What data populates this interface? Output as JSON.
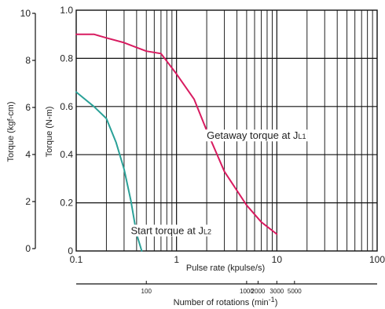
{
  "chart_data": {
    "type": "line",
    "x_scale": "log",
    "xlim": [
      0.1,
      100
    ],
    "ylim": [
      0,
      1.0
    ],
    "ylim_secondary": [
      0,
      10
    ],
    "grid": true,
    "xlabel": "Pulse rate (kpulse/s)",
    "ylabel": "Torque (N-m)",
    "ylabel_secondary": "Torque (kgf-cm)",
    "x_secondary_label": "Number of rotations (min",
    "x_secondary_label_sup": "-1",
    "x_secondary_label_end": ")",
    "x_ticks": [
      {
        "value": 0.1,
        "label": "0.1"
      },
      {
        "value": 1,
        "label": "1"
      },
      {
        "value": 10,
        "label": "10"
      },
      {
        "value": 100,
        "label": "100"
      }
    ],
    "y_ticks": [
      {
        "value": 0,
        "label": "0"
      },
      {
        "value": 0.2,
        "label": "0.2"
      },
      {
        "value": 0.4,
        "label": "0.4"
      },
      {
        "value": 0.6,
        "label": "0.6"
      },
      {
        "value": 0.8,
        "label": "0.8"
      },
      {
        "value": 1.0,
        "label": "1.0"
      }
    ],
    "y_secondary_ticks": [
      {
        "value": 0,
        "label": "0"
      },
      {
        "value": 2,
        "label": "2"
      },
      {
        "value": 4,
        "label": "4"
      },
      {
        "value": 6,
        "label": "6"
      },
      {
        "value": 8,
        "label": "8"
      },
      {
        "value": 10,
        "label": "10"
      }
    ],
    "x_secondary_ticks": [
      {
        "label": "100",
        "at_pulse_rate": 0.5
      },
      {
        "label": "1000",
        "at_pulse_rate": 5
      },
      {
        "label": "2000",
        "at_pulse_rate": 6.5
      },
      {
        "label": "3000",
        "at_pulse_rate": 10
      },
      {
        "label": "5000",
        "at_pulse_rate": 15
      }
    ],
    "series": [
      {
        "color": "#d81b60",
        "x": [
          0.1,
          0.15,
          0.2,
          0.3,
          0.4,
          0.5,
          0.7,
          1.0,
          1.5,
          2.0,
          3.0,
          5.0,
          7.0,
          10.0
        ],
        "y": [
          0.9,
          0.9,
          0.885,
          0.865,
          0.845,
          0.83,
          0.82,
          0.735,
          0.63,
          0.5,
          0.33,
          0.19,
          0.12,
          0.07
        ]
      },
      {
        "color": "#2aa198",
        "x": [
          0.1,
          0.15,
          0.2,
          0.25,
          0.3,
          0.35,
          0.4,
          0.45
        ],
        "y": [
          0.66,
          0.6,
          0.55,
          0.45,
          0.34,
          0.21,
          0.07,
          0.0
        ]
      }
    ],
    "annotations": [
      {
        "text": "Getaway torque at J",
        "subscript": "L1",
        "x": 2.0,
        "y": 0.465
      },
      {
        "text": "Start torque at J",
        "subscript": "L2",
        "x": 0.35,
        "y": 0.07
      }
    ]
  }
}
